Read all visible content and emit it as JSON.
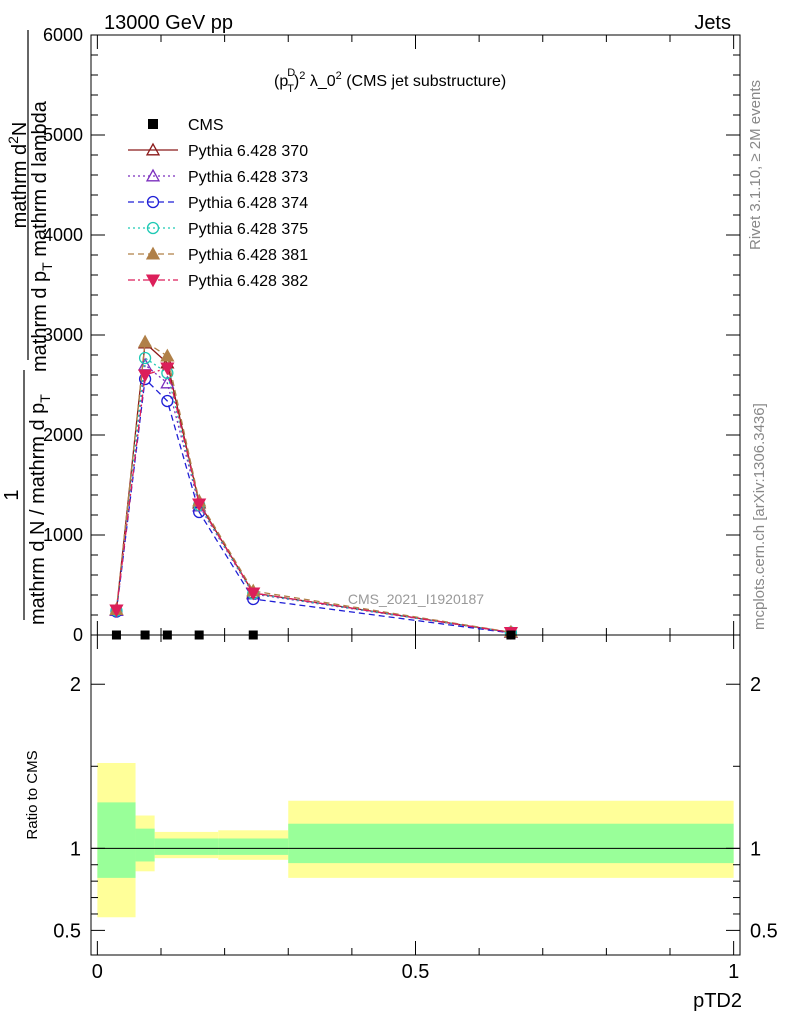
{
  "header": {
    "left": "13000 GeV pp",
    "right": "Jets"
  },
  "side_labels": {
    "rivet": "Rivet 3.1.10, ≥ 2M events",
    "mcplots": "mcplots.cern.ch [arXiv:1306.3436]"
  },
  "watermark": "CMS_2021_I1920187",
  "chart_data": [
    {
      "type": "line",
      "title_parts": {
        "base": "(p",
        "sub": "T",
        "sup": "D",
        "exp": "2",
        "rest": " λ_0",
        "rest_sup": "2",
        "tail": " (CMS jet substructure)"
      },
      "ylabel_parts": {
        "numer": "mathrm d",
        "numer_sup": "2",
        "numer_tail": "N",
        "denom": "mathrm d p",
        "denom_sub": "T",
        "denom_tail": " mathrm d lambda",
        "prefix_numer": "1",
        "prefix_denom": "mathrm d N / mathrm d p",
        "prefix_denom_sub": "T"
      },
      "xlim": [
        -0.01,
        1.01
      ],
      "ylim": [
        0,
        6000
      ],
      "y_ticks": [
        0,
        1000,
        2000,
        3000,
        4000,
        5000,
        6000
      ],
      "y_tick_labels": [
        "0",
        "1000",
        "2000",
        "3000",
        "4000",
        "5000",
        "6000"
      ],
      "data_x": [
        0.03,
        0.075,
        0.11,
        0.16,
        0.245,
        0.65
      ],
      "data_y": [
        0,
        0,
        0,
        0,
        0,
        0
      ],
      "legend": {
        "placement": "top-left",
        "data_label": "CMS"
      },
      "series": [
        {
          "name": "Pythia 6.428 370",
          "color": "#8b1a1a",
          "marker": "triangle-open",
          "dash": "solid",
          "x": [
            0.03,
            0.075,
            0.11,
            0.16,
            0.245,
            0.65
          ],
          "y": [
            250,
            2920,
            2720,
            1320,
            420,
            25
          ]
        },
        {
          "name": "Pythia 6.428 373",
          "color": "#7b2fbe",
          "marker": "triangle-open",
          "dash": "dotted",
          "x": [
            0.03,
            0.075,
            0.11,
            0.16,
            0.245,
            0.65
          ],
          "y": [
            245,
            2700,
            2520,
            1290,
            410,
            25
          ]
        },
        {
          "name": "Pythia 6.428 374",
          "color": "#1f1fd6",
          "marker": "circle-open",
          "dash": "dashed",
          "x": [
            0.03,
            0.075,
            0.11,
            0.16,
            0.245,
            0.65
          ],
          "y": [
            235,
            2560,
            2340,
            1230,
            360,
            20
          ]
        },
        {
          "name": "Pythia 6.428 375",
          "color": "#1ec9b4",
          "marker": "circle-open",
          "dash": "dotted",
          "x": [
            0.03,
            0.075,
            0.11,
            0.16,
            0.245,
            0.65
          ],
          "y": [
            245,
            2770,
            2620,
            1300,
            415,
            25
          ]
        },
        {
          "name": "Pythia 6.428 381",
          "color": "#b08048",
          "marker": "triangle-filled",
          "dash": "dashed",
          "x": [
            0.03,
            0.075,
            0.11,
            0.16,
            0.245,
            0.65
          ],
          "y": [
            255,
            2930,
            2790,
            1340,
            440,
            28
          ]
        },
        {
          "name": "Pythia 6.428 382",
          "color": "#dc1f5a",
          "marker": "triangle-down-filled",
          "dash": "dashdot",
          "x": [
            0.03,
            0.075,
            0.11,
            0.16,
            0.245,
            0.65
          ],
          "y": [
            250,
            2600,
            2670,
            1310,
            420,
            25
          ]
        }
      ]
    },
    {
      "type": "area",
      "ylabel": "Ratio to CMS",
      "xlabel": "pTD2",
      "xlim": [
        -0.01,
        1.01
      ],
      "ylim": [
        0.35,
        2.3
      ],
      "y_ticks": [
        0.5,
        1,
        2
      ],
      "y_tick_labels": [
        "0.5",
        "1",
        "2"
      ],
      "x_ticks": [
        0,
        0.5,
        1
      ],
      "x_tick_labels": [
        "0",
        "0.5",
        "1"
      ],
      "bins": [
        {
          "lo": 0.0,
          "hi": 0.06,
          "inner": [
            0.82,
            1.28
          ],
          "outer": [
            0.58,
            1.52
          ]
        },
        {
          "lo": 0.06,
          "hi": 0.09,
          "inner": [
            0.92,
            1.12
          ],
          "outer": [
            0.86,
            1.2
          ]
        },
        {
          "lo": 0.09,
          "hi": 0.19,
          "inner": [
            0.96,
            1.06
          ],
          "outer": [
            0.94,
            1.1
          ]
        },
        {
          "lo": 0.19,
          "hi": 0.3,
          "inner": [
            0.96,
            1.06
          ],
          "outer": [
            0.93,
            1.11
          ]
        },
        {
          "lo": 0.3,
          "hi": 1.0,
          "inner": [
            0.91,
            1.15
          ],
          "outer": [
            0.82,
            1.29
          ]
        }
      ],
      "reference": 1,
      "inner_color": "#99ff99",
      "outer_color": "#ffff99"
    }
  ]
}
